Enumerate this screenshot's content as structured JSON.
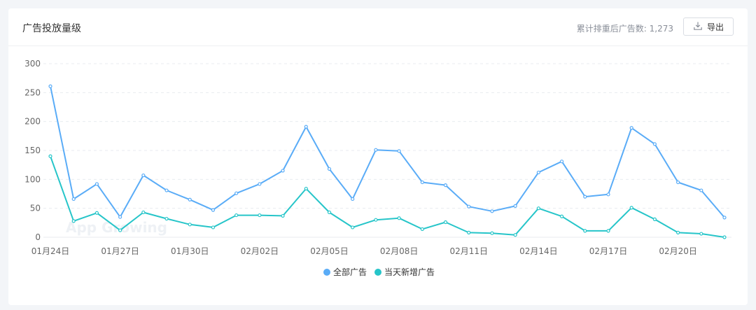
{
  "header": {
    "title": "广告投放量级",
    "stat_text": "累计排重后广告数: 1,273",
    "export_label": "导出"
  },
  "watermark": "App Growing",
  "colors": {
    "series_all": "#5aacf7",
    "series_new": "#26c5c9",
    "axis_text": "#666666",
    "grid": "#e8ebef"
  },
  "chart_data": {
    "type": "line",
    "x": [
      "01月24日",
      "01月25日",
      "01月26日",
      "01月27日",
      "01月28日",
      "01月29日",
      "01月30日",
      "01月31日",
      "02月01日",
      "02月02日",
      "02月03日",
      "02月04日",
      "02月05日",
      "02月06日",
      "02月07日",
      "02月08日",
      "02月09日",
      "02月10日",
      "02月11日",
      "02月12日",
      "02月13日",
      "02月14日",
      "02月15日",
      "02月16日",
      "02月17日",
      "02月18日",
      "02月19日",
      "02月20日",
      "02月21日",
      "02月22日"
    ],
    "x_tick_labels": [
      "01月24日",
      "01月27日",
      "01月30日",
      "02月02日",
      "02月05日",
      "02月08日",
      "02月11日",
      "02月14日",
      "02月17日",
      "02月20日"
    ],
    "series": [
      {
        "name": "全部广告",
        "values": [
          261,
          66,
          92,
          35,
          107,
          81,
          65,
          47,
          76,
          92,
          115,
          191,
          118,
          66,
          151,
          149,
          95,
          90,
          53,
          45,
          54,
          112,
          131,
          70,
          74,
          189,
          161,
          95,
          81,
          34
        ]
      },
      {
        "name": "当天新增广告",
        "values": [
          140,
          28,
          42,
          12,
          43,
          32,
          22,
          17,
          38,
          38,
          37,
          84,
          43,
          17,
          30,
          33,
          14,
          26,
          8,
          7,
          4,
          50,
          36,
          11,
          11,
          51,
          31,
          8,
          6,
          0
        ]
      }
    ],
    "ylim": [
      0,
      300
    ],
    "yticks": [
      0,
      50,
      100,
      150,
      200,
      250,
      300
    ],
    "grid": true,
    "legend_position": "bottom-center"
  }
}
